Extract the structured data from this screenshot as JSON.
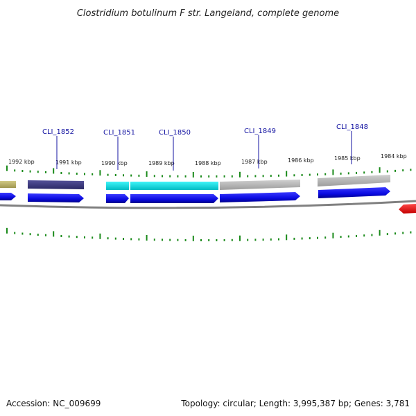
{
  "title": "Clostridium botulinum F str. Langeland, complete genome",
  "footer": {
    "accession": "Accession: NC_009699",
    "summary": "Topology: circular; Length: 3,995,387 bp; Genes: 3,781"
  },
  "colors": {
    "forward_cds": "#0a0ae0",
    "highlight_cds": "#00e5ea",
    "gray_feature": "#b8b8b8",
    "dark_feature": "#3a3880",
    "olive_feature": "#bdb46a",
    "reverse_feature": "#ff0000",
    "ticks": "#1a8a1a",
    "label_lines": "#1010a0",
    "backbone": "#888888"
  },
  "scale_labels": [
    "1992 kbp",
    "1991 kbp",
    "1990 kbp",
    "1989 kbp",
    "1988 kbp",
    "1987 kbp",
    "1986 kbp",
    "1985 kbp",
    "1984 kbp"
  ],
  "genes": [
    {
      "id": "CLI_1852",
      "label": "CLI_1852"
    },
    {
      "id": "CLI_1851",
      "label": "CLI_1851"
    },
    {
      "id": "CLI_1850",
      "label": "CLI_1850"
    },
    {
      "id": "CLI_1849",
      "label": "CLI_1849"
    },
    {
      "id": "CLI_1848",
      "label": "CLI_1848"
    }
  ]
}
